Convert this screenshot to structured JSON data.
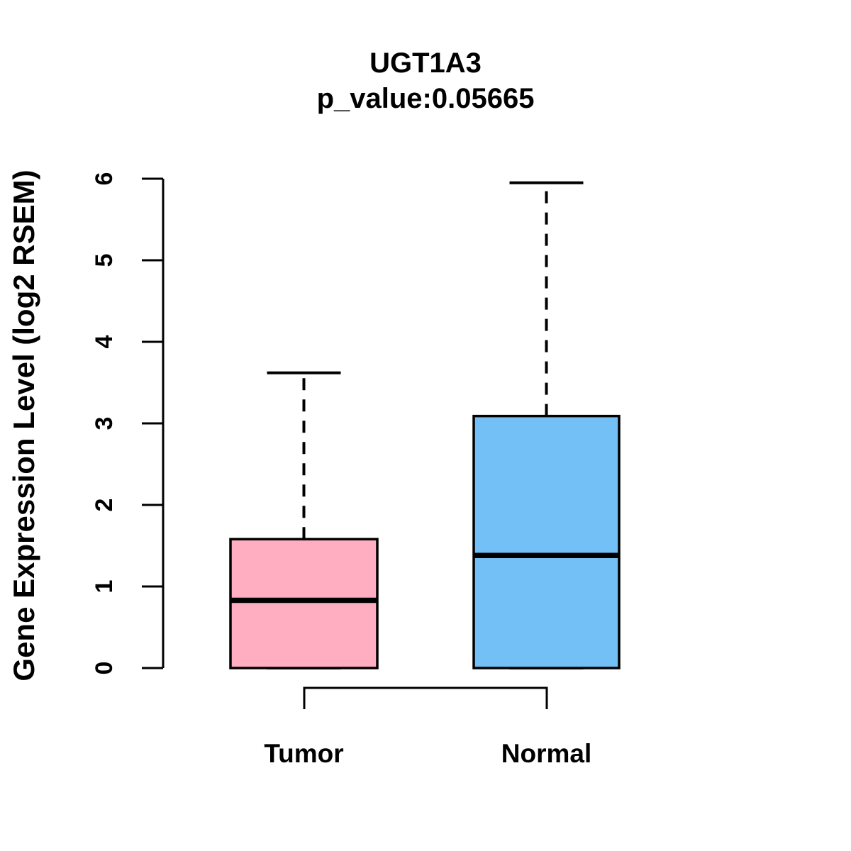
{
  "title": {
    "gene": "UGT1A3",
    "p_value_label": "p_value:0.05665"
  },
  "axes": {
    "y": {
      "label": "Gene Expression Level (log2 RSEM)",
      "ticks": [
        "0",
        "1",
        "2",
        "3",
        "4",
        "5",
        "6"
      ]
    },
    "x": {
      "categories": [
        "Tumor",
        "Normal"
      ]
    }
  },
  "chart_data": {
    "type": "boxplot",
    "title": "UGT1A3",
    "subtitle": "p_value:0.05665",
    "ylabel": "Gene Expression Level (log2 RSEM)",
    "xlabel": "",
    "ylim": [
      0,
      6
    ],
    "yticks": [
      0,
      1,
      2,
      3,
      4,
      5,
      6
    ],
    "grid": false,
    "legend": false,
    "categories": [
      "Tumor",
      "Normal"
    ],
    "series": [
      {
        "name": "Tumor",
        "color": "#FFAEC1",
        "lower_whisker": 0,
        "q1": 0,
        "median": 0.83,
        "q3": 1.58,
        "upper_whisker": 3.62
      },
      {
        "name": "Normal",
        "color": "#73C0F6",
        "lower_whisker": 0,
        "q1": 0,
        "median": 1.38,
        "q3": 3.09,
        "upper_whisker": 5.95
      }
    ],
    "comparison_bracket": {
      "between": [
        "Tumor",
        "Normal"
      ]
    }
  },
  "colors": {
    "tumor_box": "#FFAEC1",
    "normal_box": "#73C0F6",
    "stroke": "#000000",
    "background": "#FFFFFF"
  }
}
